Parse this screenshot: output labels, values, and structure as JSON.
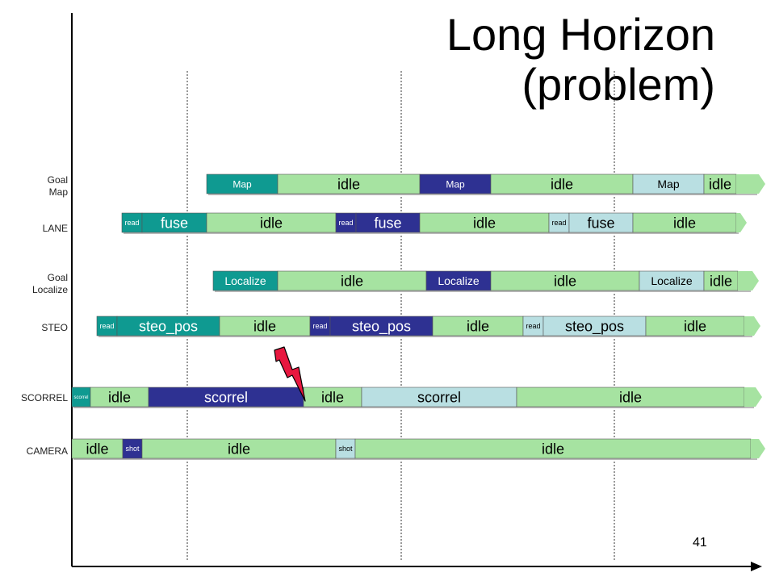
{
  "title_line1": "Long Horizon",
  "title_line2": "(problem)",
  "slide_number": "41",
  "colors": {
    "idle": "#a6e3a1",
    "teal": "#0f9a91",
    "navy": "#2e3192",
    "light": "#b9dfe2"
  },
  "rows": [
    {
      "id": "goal-map",
      "label_lines": [
        "Goal",
        "Map"
      ],
      "segments": [
        {
          "text": "Map",
          "color": "teal"
        },
        {
          "text": "idle",
          "color": "idle"
        },
        {
          "text": "Map",
          "color": "navy"
        },
        {
          "text": "idle",
          "color": "idle"
        },
        {
          "text": "Map",
          "color": "light"
        },
        {
          "text": "idle",
          "color": "idle"
        }
      ]
    },
    {
      "id": "lane",
      "label_lines": [
        "LANE"
      ],
      "segments": [
        {
          "text": "read",
          "color": "teal"
        },
        {
          "text": "fuse",
          "color": "teal"
        },
        {
          "text": "idle",
          "color": "idle"
        },
        {
          "text": "read",
          "color": "navy"
        },
        {
          "text": "fuse",
          "color": "navy"
        },
        {
          "text": "idle",
          "color": "idle"
        },
        {
          "text": "read",
          "color": "light"
        },
        {
          "text": "fuse",
          "color": "light"
        },
        {
          "text": "idle",
          "color": "idle"
        }
      ]
    },
    {
      "id": "goal-localize",
      "label_lines": [
        "Goal",
        "Localize"
      ],
      "segments": [
        {
          "text": "Localize",
          "color": "teal"
        },
        {
          "text": "idle",
          "color": "idle"
        },
        {
          "text": "Localize",
          "color": "navy"
        },
        {
          "text": "idle",
          "color": "idle"
        },
        {
          "text": "Localize",
          "color": "light"
        },
        {
          "text": "idle",
          "color": "idle"
        }
      ]
    },
    {
      "id": "steo",
      "label_lines": [
        "STEO"
      ],
      "segments": [
        {
          "text": "read",
          "color": "teal"
        },
        {
          "text": "steo_pos",
          "color": "teal"
        },
        {
          "text": "idle",
          "color": "idle"
        },
        {
          "text": "read",
          "color": "navy"
        },
        {
          "text": "steo_pos",
          "color": "navy"
        },
        {
          "text": "idle",
          "color": "idle"
        },
        {
          "text": "read",
          "color": "light"
        },
        {
          "text": "steo_pos",
          "color": "light"
        },
        {
          "text": "idle",
          "color": "idle"
        }
      ]
    },
    {
      "id": "scorrel",
      "label_lines": [
        "SCORREL"
      ],
      "segments": [
        {
          "text": "scorrel",
          "color": "teal"
        },
        {
          "text": "idle",
          "color": "idle"
        },
        {
          "text": "scorrel",
          "color": "navy"
        },
        {
          "text": "idle",
          "color": "idle"
        },
        {
          "text": "scorrel",
          "color": "light"
        },
        {
          "text": "idle",
          "color": "idle"
        }
      ]
    },
    {
      "id": "camera",
      "label_lines": [
        "CAMERA"
      ],
      "segments": [
        {
          "text": "idle",
          "color": "idle"
        },
        {
          "text": "shot",
          "color": "navy"
        },
        {
          "text": "idle",
          "color": "idle"
        },
        {
          "text": "shot",
          "color": "light"
        },
        {
          "text": "idle",
          "color": "idle"
        }
      ]
    }
  ]
}
